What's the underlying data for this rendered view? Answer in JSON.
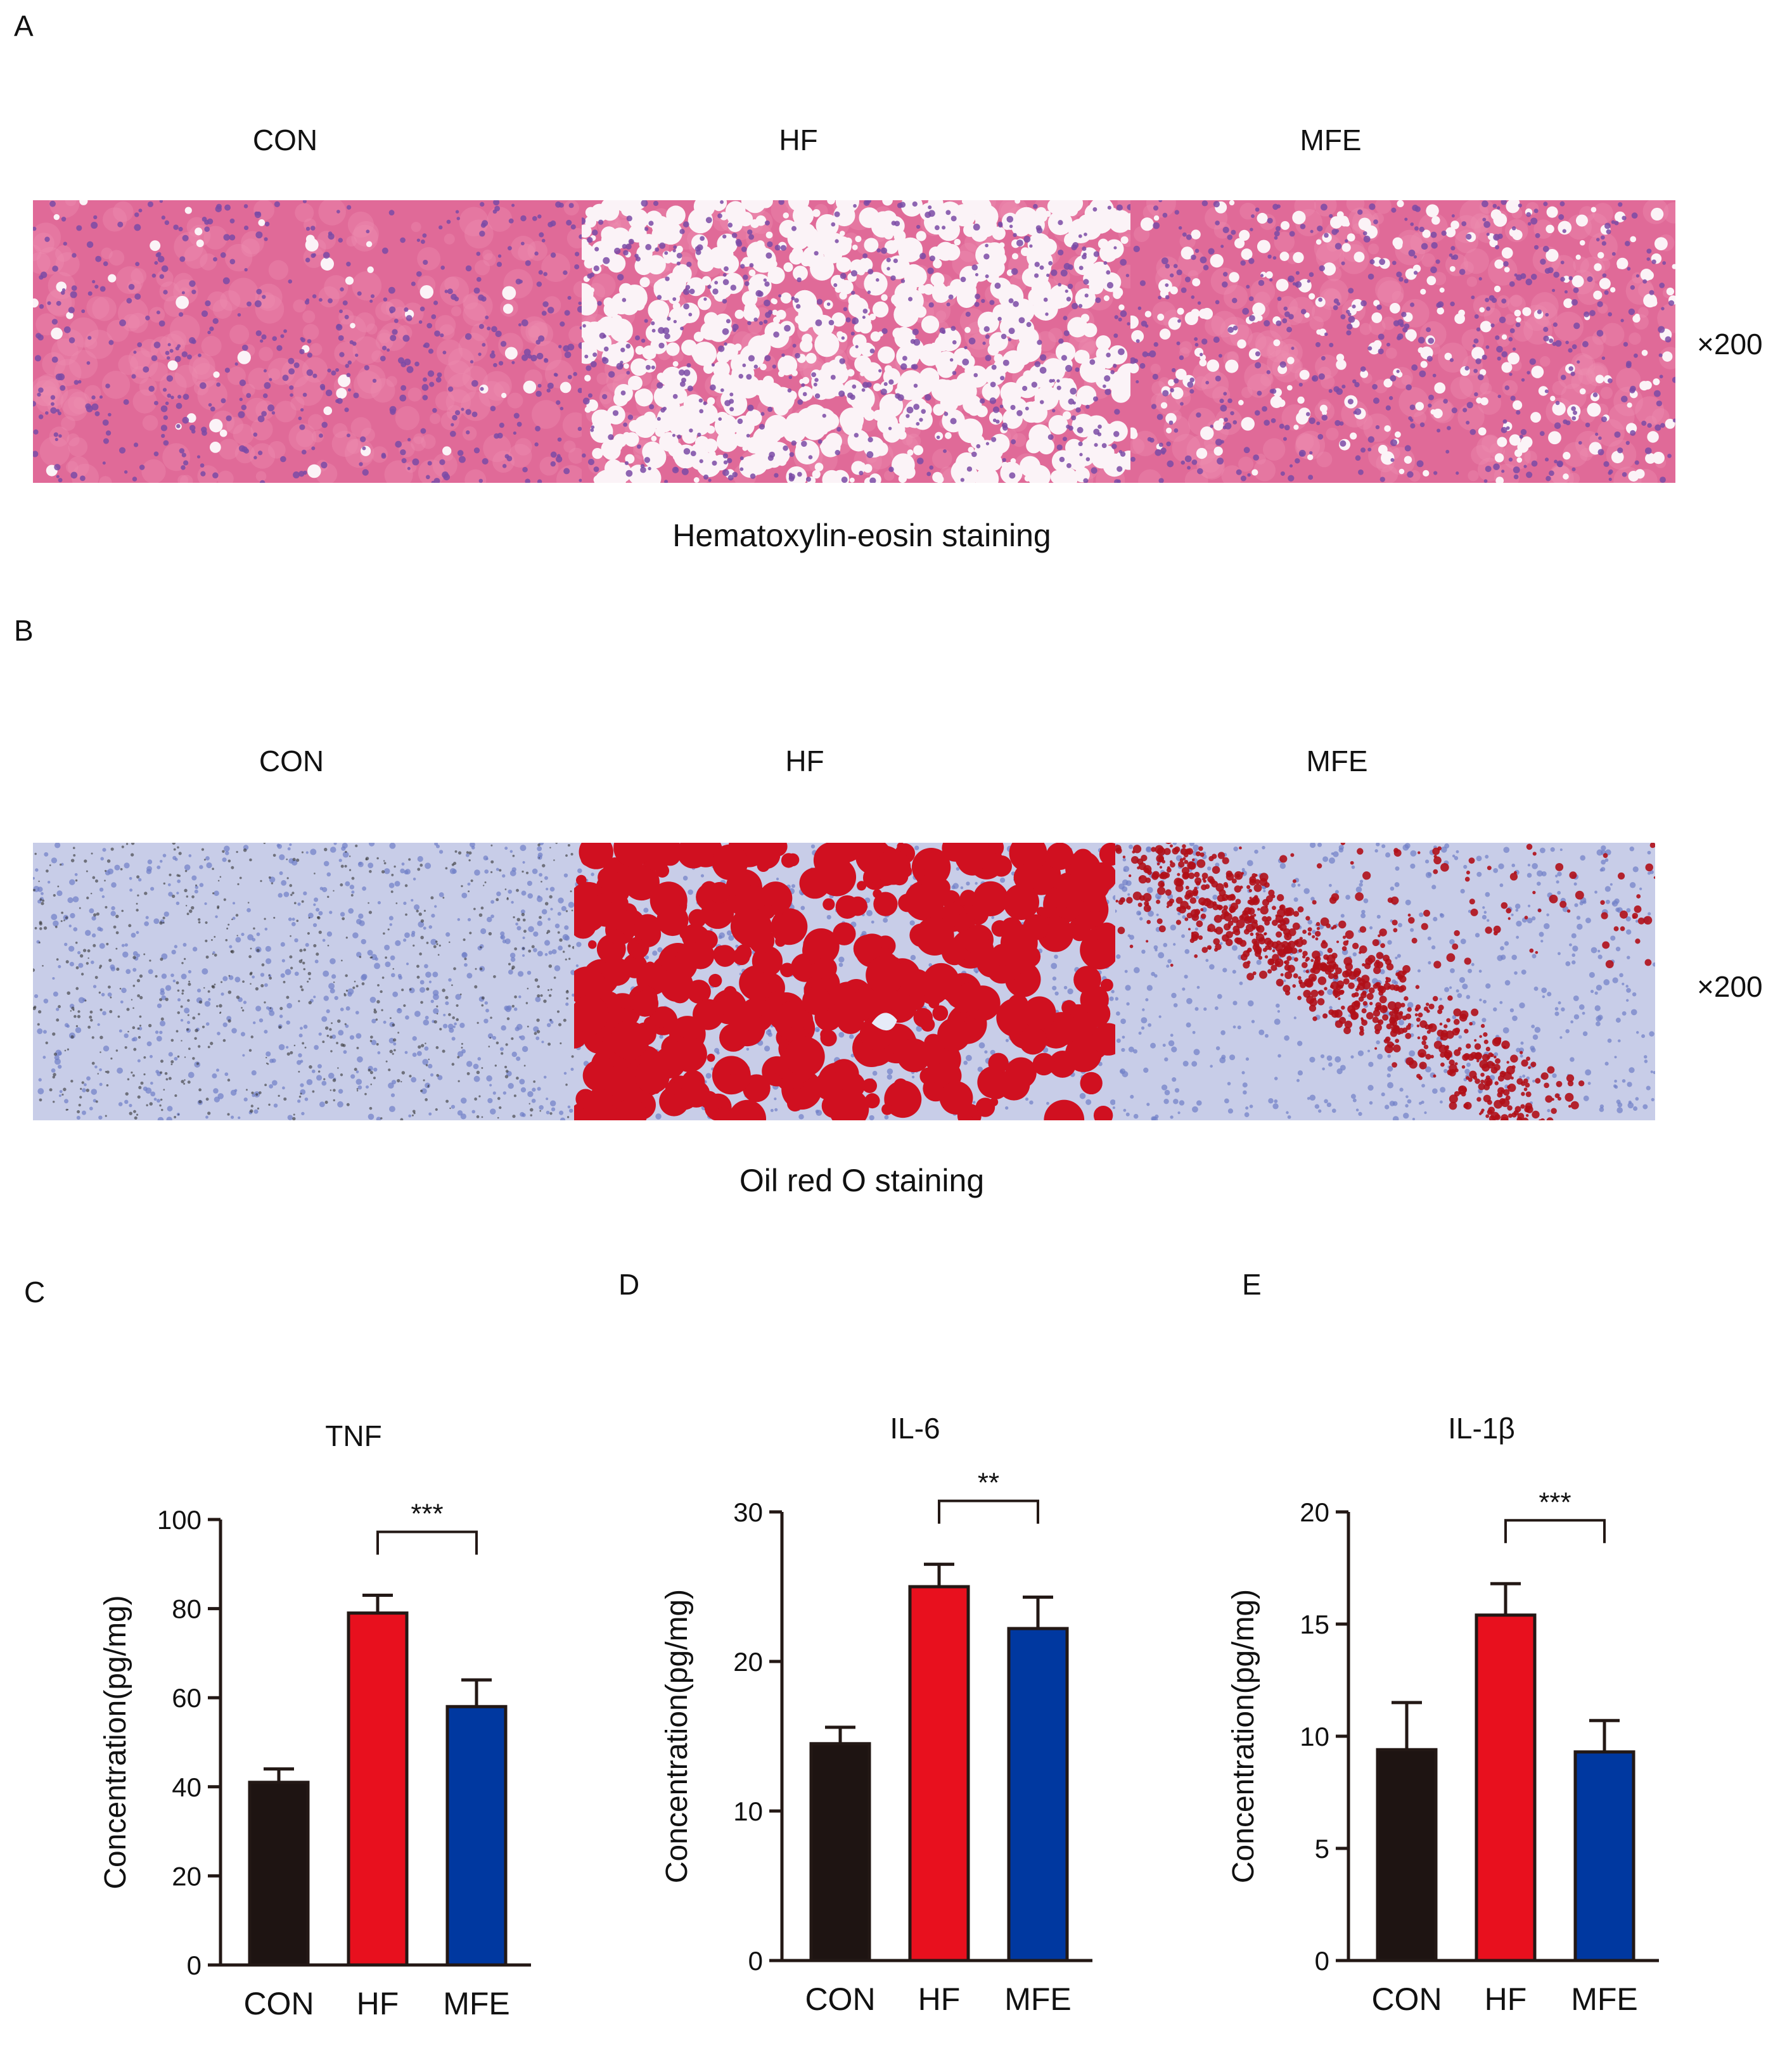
{
  "panel_letters": {
    "a": "A",
    "b": "B",
    "c": "C",
    "d": "D",
    "e": "E"
  },
  "panel_a": {
    "groups": [
      "CON",
      "HF",
      "MFE"
    ],
    "magnification": "×200",
    "caption": "Hematoxylin-eosin staining"
  },
  "panel_b": {
    "groups": [
      "CON",
      "HF",
      "MFE"
    ],
    "magnification": "×200",
    "caption": "Oil red O staining"
  },
  "colors": {
    "con": "#1e1412",
    "hf": "#e8101e",
    "mfe": "#0038a0",
    "he_pink": "#e06a98",
    "he_nuclei": "#7a4aa6",
    "oro_blue": "#c8cde8",
    "oro_red": "#d01020"
  },
  "chart_data": [
    {
      "type": "bar",
      "title": "TNF",
      "categories": [
        "CON",
        "HF",
        "MFE"
      ],
      "values": [
        41,
        79,
        58
      ],
      "errors": [
        3,
        4,
        6
      ],
      "ylabel": "Concentration(pg/mg)",
      "xlabel": "",
      "ylim": [
        0,
        100
      ],
      "yticks": [
        0,
        20,
        40,
        60,
        80,
        100
      ],
      "significance": {
        "from": "HF",
        "to": "MFE",
        "label": "***"
      }
    },
    {
      "type": "bar",
      "title": "IL-6",
      "categories": [
        "CON",
        "HF",
        "MFE"
      ],
      "values": [
        14.5,
        25,
        22.2
      ],
      "errors": [
        1.1,
        1.5,
        2.1
      ],
      "ylabel": "Concentration(pg/mg)",
      "xlabel": "",
      "ylim": [
        0,
        30
      ],
      "yticks": [
        0,
        10,
        20,
        30
      ],
      "significance": {
        "from": "HF",
        "to": "MFE",
        "label": "**"
      }
    },
    {
      "type": "bar",
      "title": "IL-1β",
      "categories": [
        "CON",
        "HF",
        "MFE"
      ],
      "values": [
        9.4,
        15.4,
        9.3
      ],
      "errors": [
        2.1,
        1.4,
        1.4
      ],
      "ylabel": "Concentration(pg/mg)",
      "xlabel": "",
      "ylim": [
        0,
        20
      ],
      "yticks": [
        0,
        5,
        10,
        15,
        20
      ],
      "significance": {
        "from": "HF",
        "to": "MFE",
        "label": "***"
      }
    }
  ]
}
